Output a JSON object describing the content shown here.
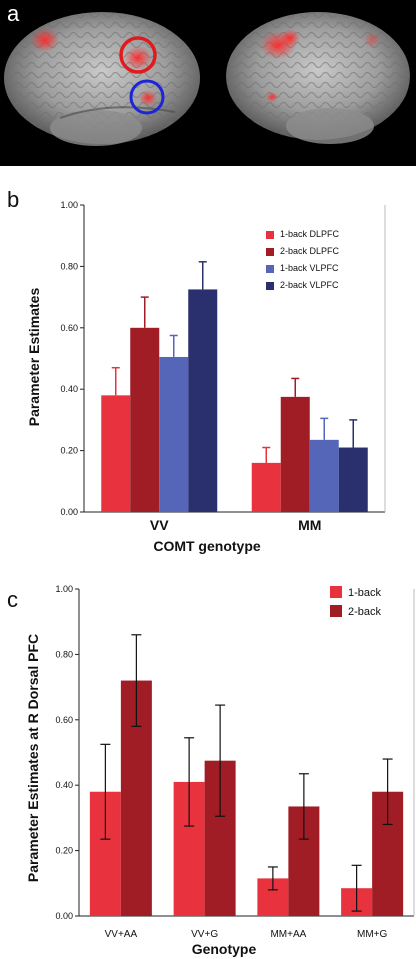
{
  "panels": {
    "a": {
      "label": "a"
    },
    "b": {
      "label": "b"
    },
    "c": {
      "label": "c"
    }
  },
  "colors": {
    "oneback_dlpfc": "#e8333f",
    "twoback_dlpfc": "#a01d25",
    "oneback_vlpfc": "#5566b8",
    "twoback_vlpfc": "#2a2f6e",
    "ring_red": "#e11b1b",
    "ring_blue": "#1c26d6"
  },
  "chart_data": [
    {
      "type": "bar",
      "panel": "b",
      "title": "",
      "xlabel": "COMT genotype",
      "ylabel": "Parameter Estimates",
      "ylim": [
        0,
        1.0
      ],
      "yticks": [
        "0.00",
        "0.20",
        "0.40",
        "0.60",
        "0.80",
        "1.00"
      ],
      "categories": [
        "VV",
        "MM"
      ],
      "legend_position": "top-right",
      "series": [
        {
          "name": "1-back DLPFC",
          "values": [
            0.38,
            0.16
          ],
          "errors": [
            0.09,
            0.05
          ]
        },
        {
          "name": "2-back DLPFC",
          "values": [
            0.6,
            0.375
          ],
          "errors": [
            0.1,
            0.06
          ]
        },
        {
          "name": "1-back VLPFC",
          "values": [
            0.505,
            0.235
          ],
          "errors": [
            0.07,
            0.07
          ]
        },
        {
          "name": "2-back VLPFC",
          "values": [
            0.725,
            0.21
          ],
          "errors": [
            0.09,
            0.09
          ]
        }
      ]
    },
    {
      "type": "bar",
      "panel": "c",
      "title": "",
      "xlabel": "Genotype",
      "ylabel": "Parameter Estimates at R Dorsal PFC",
      "ylim": [
        0,
        1.0
      ],
      "yticks": [
        "0.00",
        "0.20",
        "0.40",
        "0.60",
        "0.80",
        "1.00"
      ],
      "categories": [
        "VV+AA",
        "VV+G",
        "MM+AA",
        "MM+G"
      ],
      "legend_position": "top-right",
      "series": [
        {
          "name": "1-back",
          "values": [
            0.38,
            0.41,
            0.115,
            0.085
          ],
          "errors": [
            0.145,
            0.135,
            0.035,
            0.07
          ]
        },
        {
          "name": "2-back",
          "values": [
            0.72,
            0.475,
            0.335,
            0.38
          ],
          "errors": [
            0.14,
            0.17,
            0.1,
            0.1
          ]
        }
      ]
    }
  ]
}
